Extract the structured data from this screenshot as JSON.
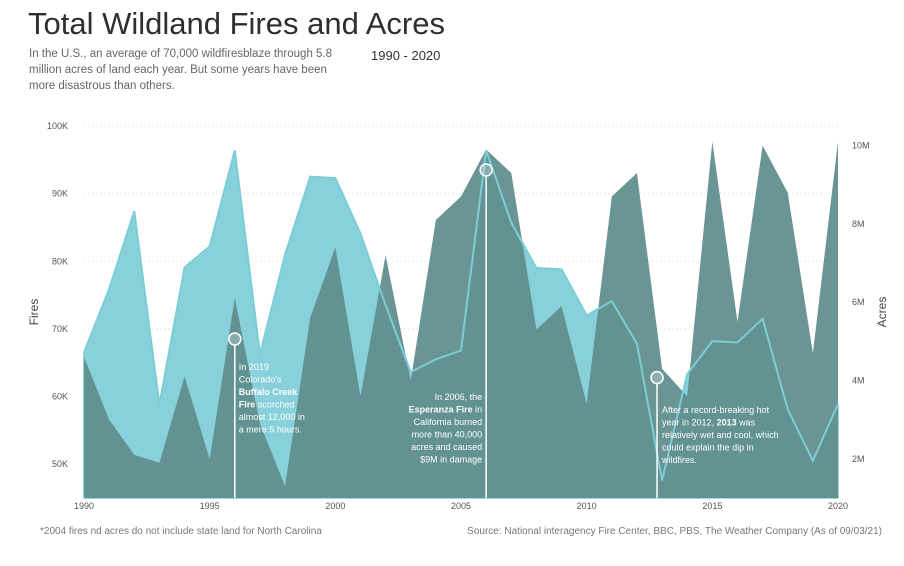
{
  "header": {
    "title": "Total Wildland Fires and Acres",
    "subtitle": "In the U.S., an average of 70,000 wildfiresblaze through 5.8 million acres of land each year. But some years have been more disastrous than others.",
    "years": "1990 - 2020"
  },
  "footer": {
    "footnote": "*2004 fires nd acres do not include state land for North Carolina",
    "source": "Source: National interagency Fire Center, BBC, PBS, The Weather Company (As of 09/03/21)"
  },
  "colors": {
    "fires_fill": "#5e8c8b",
    "acres_fill": "#88d1da",
    "acres_line": "#7ccdd6",
    "annotation_line": "#ffffff",
    "axis_text": "#555555"
  },
  "chart_data": {
    "type": "area",
    "x": [
      1990,
      1991,
      1992,
      1993,
      1994,
      1995,
      1996,
      1997,
      1998,
      1999,
      2000,
      2001,
      2002,
      2003,
      2004,
      2005,
      2006,
      2007,
      2008,
      2009,
      2010,
      2011,
      2012,
      2013,
      2014,
      2015,
      2016,
      2017,
      2018,
      2019,
      2020
    ],
    "xticks": [
      "1990",
      "1995",
      "2000",
      "2005",
      "2010",
      "2015",
      "2020"
    ],
    "xlim": [
      1990,
      2020
    ],
    "ylabel_left": "Fires",
    "ylabel_right": "Acres",
    "ylim_left": [
      45000,
      100000
    ],
    "ylim_right": [
      1000000,
      10500000
    ],
    "yticks_left": [
      "50K",
      "60K",
      "70K",
      "80K",
      "90K",
      "100K"
    ],
    "yticks_left_values": [
      50000,
      60000,
      70000,
      80000,
      90000,
      100000
    ],
    "yticks_right": [
      "2M",
      "4M",
      "6M",
      "8M",
      "10M"
    ],
    "yticks_right_values": [
      2000000,
      4000000,
      6000000,
      8000000,
      10000000
    ],
    "series": [
      {
        "name": "Fires",
        "axis": "left",
        "values": [
          66500,
          75900,
          87400,
          58800,
          79100,
          82200,
          96400,
          66200,
          81000,
          92500,
          92300,
          84100,
          73500,
          63600,
          65500,
          66800,
          96400,
          85700,
          79000,
          78800,
          72000,
          74100,
          67800,
          47600,
          63300,
          68200,
          68000,
          71500,
          58100,
          50500,
          58900
        ]
      },
      {
        "name": "Acres",
        "axis": "right",
        "values": [
          4600000,
          3000000,
          2100000,
          1900000,
          4100000,
          2000000,
          6100000,
          2900000,
          1300000,
          5600000,
          7400000,
          3600000,
          7200000,
          4000000,
          8100000,
          8700000,
          9900000,
          9300000,
          5300000,
          5900000,
          3400000,
          8700000,
          9300000,
          4300000,
          3600000,
          10100000,
          5500000,
          10000000,
          8800000,
          4700000,
          10100000
        ]
      }
    ],
    "annotations": [
      {
        "year": 1996,
        "anchor_value": 68500,
        "lines": [
          {
            "text": "In 2019",
            "bold": false
          },
          {
            "text": "Colorado's",
            "bold": false
          },
          {
            "text": "Buffalo Creek",
            "bold": true
          },
          {
            "parts": [
              {
                "text": "Fire",
                "bold": true
              },
              {
                "text": " scorched",
                "bold": false
              }
            ]
          },
          {
            "text": "almost 12,000 in",
            "bold": false
          },
          {
            "text": "a mere 5 hours.",
            "bold": false
          }
        ]
      },
      {
        "year": 2006,
        "anchor_value": 93500,
        "lines": [
          {
            "text": "In 2006, the",
            "bold": false
          },
          {
            "text": "Esperanza Fire",
            "bold": true,
            "suffix": " in"
          },
          {
            "text": "California burned",
            "bold": false
          },
          {
            "text": "more than 40,000",
            "bold": false
          },
          {
            "text": "acres and caused",
            "bold": false
          },
          {
            "text": "$9M in damage",
            "bold": false
          }
        ]
      },
      {
        "year": 2012.8,
        "anchor_value": 62800,
        "lines": [
          {
            "text": "After a record-breaking hot",
            "bold": false
          },
          {
            "parts": [
              {
                "text": "year in 2012, ",
                "bold": false
              },
              {
                "text": "2013",
                "bold": true
              },
              {
                "text": " was",
                "bold": false
              }
            ]
          },
          {
            "text": "relatively wet and cool, which",
            "bold": false
          },
          {
            "text": "could explain the dip in",
            "bold": false
          },
          {
            "text": "wildfires.",
            "bold": false
          }
        ]
      }
    ],
    "grid": true
  }
}
